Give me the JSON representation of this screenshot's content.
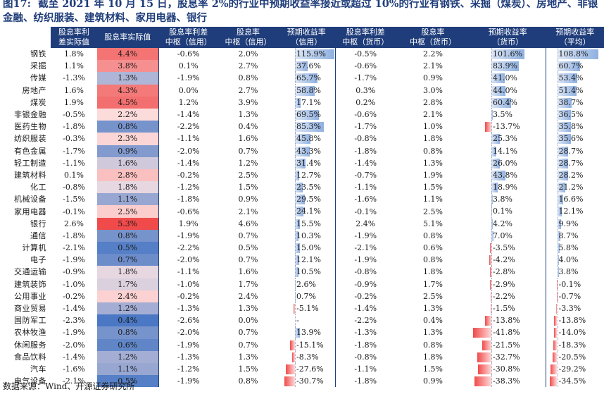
{
  "title": {
    "label": "图17:",
    "text": "截至 2021 年 10 月 15 日，股息率 2%的行业中预期收益率接近或超过 10%的行业有钢铁、采掘（煤炭）、房地产、非银金融、纺织服装、建筑材料、家用电器、银行"
  },
  "columns": [
    "股息率利差实际值",
    "股息率实际值",
    "股息率利差中枢（信用）",
    "股息率中枢（信用）",
    "预期收益率（信用）",
    "股息率利差中枢（货币）",
    "股息率中枢（货币）",
    "预期收益率（货币）",
    "预期收益率（平均）"
  ],
  "column_lines": [
    [
      "股息率利",
      "差实际值"
    ],
    [
      "股息率实际值"
    ],
    [
      "股息率利差",
      "中枢（信用）"
    ],
    [
      "股息率",
      "中枢（信用）"
    ],
    [
      "预期收益率",
      "（信用）"
    ],
    [
      "股息率利差",
      "中枢（货币）"
    ],
    [
      "股息率",
      "中枢（货币）"
    ],
    [
      "预期收益率",
      "（货币）"
    ],
    [
      "预期收益率",
      "（平均）"
    ]
  ],
  "colors": {
    "header_bg": "#1f3d7a",
    "heat_high": "#f04a4a",
    "heat_mid": "#fde4e4",
    "heat_low": "#4a78c4",
    "bar_positive": "#8fb0e0",
    "bar_negative": "#f04a4a"
  },
  "chart_data": {
    "type": "table",
    "bar_scale_max": 116,
    "rows": [
      {
        "industry": "钢铁",
        "spread": "1.8%",
        "dy": "4.4%",
        "dy_val": 4.4,
        "c_spread": "-0.6%",
        "c_dy": "2.0%",
        "ret_c": "115.9%",
        "ret_c_val": 115.9,
        "m_spread": "-0.5%",
        "m_dy": "2.2%",
        "ret_m": "101.6%",
        "ret_m_val": 101.6,
        "ret_avg": "108.8%",
        "ret_avg_val": 108.8
      },
      {
        "industry": "采掘",
        "spread": "1.1%",
        "dy": "3.8%",
        "dy_val": 3.8,
        "c_spread": "0.1%",
        "c_dy": "2.7%",
        "ret_c": "37.6%",
        "ret_c_val": 37.6,
        "m_spread": "-0.6%",
        "m_dy": "2.1%",
        "ret_m": "83.9%",
        "ret_m_val": 83.9,
        "ret_avg": "60.7%",
        "ret_avg_val": 60.7
      },
      {
        "industry": "传媒",
        "spread": "-1.3%",
        "dy": "1.3%",
        "dy_val": 1.3,
        "c_spread": "-1.9%",
        "c_dy": "0.8%",
        "ret_c": "65.7%",
        "ret_c_val": 65.7,
        "m_spread": "-1.7%",
        "m_dy": "0.9%",
        "ret_m": "41.0%",
        "ret_m_val": 41.0,
        "ret_avg": "53.4%",
        "ret_avg_val": 53.4
      },
      {
        "industry": "房地产",
        "spread": "1.6%",
        "dy": "4.3%",
        "dy_val": 4.3,
        "c_spread": "0.0%",
        "c_dy": "2.7%",
        "ret_c": "58.8%",
        "ret_c_val": 58.8,
        "m_spread": "0.3%",
        "m_dy": "3.0%",
        "ret_m": "44.0%",
        "ret_m_val": 44.0,
        "ret_avg": "51.4%",
        "ret_avg_val": 51.4
      },
      {
        "industry": "煤炭",
        "spread": "1.9%",
        "dy": "4.5%",
        "dy_val": 4.5,
        "c_spread": "1.2%",
        "c_dy": "3.9%",
        "ret_c": "17.1%",
        "ret_c_val": 17.1,
        "m_spread": "0.2%",
        "m_dy": "2.8%",
        "ret_m": "60.4%",
        "ret_m_val": 60.4,
        "ret_avg": "38.7%",
        "ret_avg_val": 38.7
      },
      {
        "industry": "非银金融",
        "spread": "-0.5%",
        "dy": "2.2%",
        "dy_val": 2.2,
        "c_spread": "-1.4%",
        "c_dy": "1.3%",
        "ret_c": "69.5%",
        "ret_c_val": 69.5,
        "m_spread": "-0.6%",
        "m_dy": "2.1%",
        "ret_m": "3.5%",
        "ret_m_val": 3.5,
        "ret_avg": "36.5%",
        "ret_avg_val": 36.5
      },
      {
        "industry": "医药生物",
        "spread": "-1.8%",
        "dy": "0.8%",
        "dy_val": 0.8,
        "c_spread": "-2.2%",
        "c_dy": "0.4%",
        "ret_c": "85.3%",
        "ret_c_val": 85.3,
        "m_spread": "-1.7%",
        "m_dy": "1.0%",
        "ret_m": "-13.7%",
        "ret_m_val": -13.7,
        "ret_avg": "35.8%",
        "ret_avg_val": 35.8
      },
      {
        "industry": "纺织服装",
        "spread": "-0.3%",
        "dy": "2.3%",
        "dy_val": 2.3,
        "c_spread": "-1.1%",
        "c_dy": "1.6%",
        "ret_c": "45.8%",
        "ret_c_val": 45.8,
        "m_spread": "-0.8%",
        "m_dy": "1.8%",
        "ret_m": "25.3%",
        "ret_m_val": 25.3,
        "ret_avg": "35.6%",
        "ret_avg_val": 35.6
      },
      {
        "industry": "有色金属",
        "spread": "-1.7%",
        "dy": "0.9%",
        "dy_val": 0.9,
        "c_spread": "-2.0%",
        "c_dy": "0.7%",
        "ret_c": "43.3%",
        "ret_c_val": 43.3,
        "m_spread": "-1.8%",
        "m_dy": "0.8%",
        "ret_m": "14.1%",
        "ret_m_val": 14.1,
        "ret_avg": "28.7%",
        "ret_avg_val": 28.7
      },
      {
        "industry": "轻工制造",
        "spread": "-1.1%",
        "dy": "1.6%",
        "dy_val": 1.6,
        "c_spread": "-1.4%",
        "c_dy": "1.2%",
        "ret_c": "31.4%",
        "ret_c_val": 31.4,
        "m_spread": "-1.4%",
        "m_dy": "1.3%",
        "ret_m": "26.0%",
        "ret_m_val": 26.0,
        "ret_avg": "28.7%",
        "ret_avg_val": 28.7
      },
      {
        "industry": "建筑材料",
        "spread": "0.1%",
        "dy": "2.8%",
        "dy_val": 2.8,
        "c_spread": "-0.2%",
        "c_dy": "2.5%",
        "ret_c": "12.7%",
        "ret_c_val": 12.7,
        "m_spread": "-0.7%",
        "m_dy": "1.9%",
        "ret_m": "43.8%",
        "ret_m_val": 43.8,
        "ret_avg": "28.2%",
        "ret_avg_val": 28.2
      },
      {
        "industry": "化工",
        "spread": "-0.8%",
        "dy": "1.8%",
        "dy_val": 1.8,
        "c_spread": "-1.2%",
        "c_dy": "1.5%",
        "ret_c": "23.5%",
        "ret_c_val": 23.5,
        "m_spread": "-1.1%",
        "m_dy": "1.5%",
        "ret_m": "18.9%",
        "ret_m_val": 18.9,
        "ret_avg": "21.2%",
        "ret_avg_val": 21.2
      },
      {
        "industry": "机械设备",
        "spread": "-1.5%",
        "dy": "1.1%",
        "dy_val": 1.1,
        "c_spread": "-1.8%",
        "c_dy": "0.9%",
        "ret_c": "29.5%",
        "ret_c_val": 29.5,
        "m_spread": "-1.6%",
        "m_dy": "1.1%",
        "ret_m": "3.8%",
        "ret_m_val": 3.8,
        "ret_avg": "16.6%",
        "ret_avg_val": 16.6
      },
      {
        "industry": "家用电器",
        "spread": "-0.1%",
        "dy": "2.5%",
        "dy_val": 2.5,
        "c_spread": "-0.6%",
        "c_dy": "2.1%",
        "ret_c": "24.1%",
        "ret_c_val": 24.1,
        "m_spread": "-0.1%",
        "m_dy": "2.5%",
        "ret_m": "0.1%",
        "ret_m_val": 0.1,
        "ret_avg": "12.1%",
        "ret_avg_val": 12.1
      },
      {
        "industry": "银行",
        "spread": "2.6%",
        "dy": "5.3%",
        "dy_val": 5.3,
        "c_spread": "1.9%",
        "c_dy": "4.6%",
        "ret_c": "15.5%",
        "ret_c_val": 15.5,
        "m_spread": "2.4%",
        "m_dy": "5.1%",
        "ret_m": "4.2%",
        "ret_m_val": 4.2,
        "ret_avg": "9.9%",
        "ret_avg_val": 9.9
      },
      {
        "industry": "通信",
        "spread": "-1.8%",
        "dy": "0.8%",
        "dy_val": 0.8,
        "c_spread": "-1.9%",
        "c_dy": "0.7%",
        "ret_c": "10.3%",
        "ret_c_val": 10.3,
        "m_spread": "-1.9%",
        "m_dy": "0.8%",
        "ret_m": "7.0%",
        "ret_m_val": 7.0,
        "ret_avg": "8.7%",
        "ret_avg_val": 8.7
      },
      {
        "industry": "计算机",
        "spread": "-2.1%",
        "dy": "0.5%",
        "dy_val": 0.5,
        "c_spread": "-2.2%",
        "c_dy": "0.5%",
        "ret_c": "15.0%",
        "ret_c_val": 15.0,
        "m_spread": "-2.1%",
        "m_dy": "0.6%",
        "ret_m": "-3.5%",
        "ret_m_val": -3.5,
        "ret_avg": "5.8%",
        "ret_avg_val": 5.8
      },
      {
        "industry": "电子",
        "spread": "-1.9%",
        "dy": "0.7%",
        "dy_val": 0.7,
        "c_spread": "-2.0%",
        "c_dy": "0.7%",
        "ret_c": "12.1%",
        "ret_c_val": 12.1,
        "m_spread": "-1.9%",
        "m_dy": "0.8%",
        "ret_m": "-4.2%",
        "ret_m_val": -4.2,
        "ret_avg": "4.0%",
        "ret_avg_val": 4.0
      },
      {
        "industry": "交通运输",
        "spread": "-0.9%",
        "dy": "1.8%",
        "dy_val": 1.8,
        "c_spread": "-1.1%",
        "c_dy": "1.6%",
        "ret_c": "10.5%",
        "ret_c_val": 10.5,
        "m_spread": "-0.8%",
        "m_dy": "1.8%",
        "ret_m": "-2.8%",
        "ret_m_val": -2.8,
        "ret_avg": "3.8%",
        "ret_avg_val": 3.8
      },
      {
        "industry": "建筑装饰",
        "spread": "-1.0%",
        "dy": "1.7%",
        "dy_val": 1.7,
        "c_spread": "-1.0%",
        "c_dy": "1.7%",
        "ret_c": "2.6%",
        "ret_c_val": 2.6,
        "m_spread": "-0.9%",
        "m_dy": "1.7%",
        "ret_m": "-2.9%",
        "ret_m_val": -2.9,
        "ret_avg": "-0.1%",
        "ret_avg_val": -0.1
      },
      {
        "industry": "公用事业",
        "spread": "-0.2%",
        "dy": "2.4%",
        "dy_val": 2.4,
        "c_spread": "-0.2%",
        "c_dy": "2.4%",
        "ret_c": "0.7%",
        "ret_c_val": 0.7,
        "m_spread": "-0.2%",
        "m_dy": "2.5%",
        "ret_m": "-2.2%",
        "ret_m_val": -2.2,
        "ret_avg": "-0.7%",
        "ret_avg_val": -0.7
      },
      {
        "industry": "商业贸易",
        "spread": "-1.4%",
        "dy": "1.2%",
        "dy_val": 1.2,
        "c_spread": "-1.3%",
        "c_dy": "1.3%",
        "ret_c": "-5.1%",
        "ret_c_val": -5.1,
        "m_spread": "-1.4%",
        "m_dy": "1.3%",
        "ret_m": "-1.5%",
        "ret_m_val": -1.5,
        "ret_avg": "-3.3%",
        "ret_avg_val": -3.3
      },
      {
        "industry": "国防军工",
        "spread": "-2.3%",
        "dy": "0.4%",
        "dy_val": 0.4,
        "c_spread": "-2.6%",
        "c_dy": "0.0%",
        "ret_c": "-",
        "ret_c_val": null,
        "m_spread": "-2.2%",
        "m_dy": "0.4%",
        "ret_m": "-13.8%",
        "ret_m_val": -13.8,
        "ret_avg": "-13.8%",
        "ret_avg_val": -13.8
      },
      {
        "industry": "农林牧渔",
        "spread": "-1.9%",
        "dy": "0.8%",
        "dy_val": 0.8,
        "c_spread": "-2.0%",
        "c_dy": "0.7%",
        "ret_c": "13.9%",
        "ret_c_val": 13.9,
        "m_spread": "-1.3%",
        "m_dy": "1.3%",
        "ret_m": "-41.8%",
        "ret_m_val": -41.8,
        "ret_avg": "-14.0%",
        "ret_avg_val": -14.0
      },
      {
        "industry": "休闲服务",
        "spread": "-2.0%",
        "dy": "0.6%",
        "dy_val": 0.6,
        "c_spread": "-1.9%",
        "c_dy": "0.7%",
        "ret_c": "-15.1%",
        "ret_c_val": -15.1,
        "m_spread": "-1.8%",
        "m_dy": "0.8%",
        "ret_m": "-21.5%",
        "ret_m_val": -21.5,
        "ret_avg": "-18.3%",
        "ret_avg_val": -18.3
      },
      {
        "industry": "食品饮料",
        "spread": "-1.4%",
        "dy": "1.2%",
        "dy_val": 1.2,
        "c_spread": "-1.3%",
        "c_dy": "1.3%",
        "ret_c": "-8.3%",
        "ret_c_val": -8.3,
        "m_spread": "-0.8%",
        "m_dy": "1.8%",
        "ret_m": "-32.7%",
        "ret_m_val": -32.7,
        "ret_avg": "-20.5%",
        "ret_avg_val": -20.5
      },
      {
        "industry": "汽车",
        "spread": "-1.6%",
        "dy": "1.1%",
        "dy_val": 1.1,
        "c_spread": "-1.2%",
        "c_dy": "1.5%",
        "ret_c": "-27.6%",
        "ret_c_val": -27.6,
        "m_spread": "-1.1%",
        "m_dy": "1.5%",
        "ret_m": "-30.8%",
        "ret_m_val": -30.8,
        "ret_avg": "-29.2%",
        "ret_avg_val": -29.2
      },
      {
        "industry": "电气设备",
        "spread": "-2.1%",
        "dy": "0.5%",
        "dy_val": 0.5,
        "c_spread": "-1.9%",
        "c_dy": "0.8%",
        "ret_c": "-30.7%",
        "ret_c_val": -30.7,
        "m_spread": "-1.8%",
        "m_dy": "0.9%",
        "ret_m": "-38.3%",
        "ret_m_val": -38.3,
        "ret_avg": "-34.5%",
        "ret_avg_val": -34.5
      }
    ]
  },
  "source": "数据来源：Wind、开源证券研究所"
}
